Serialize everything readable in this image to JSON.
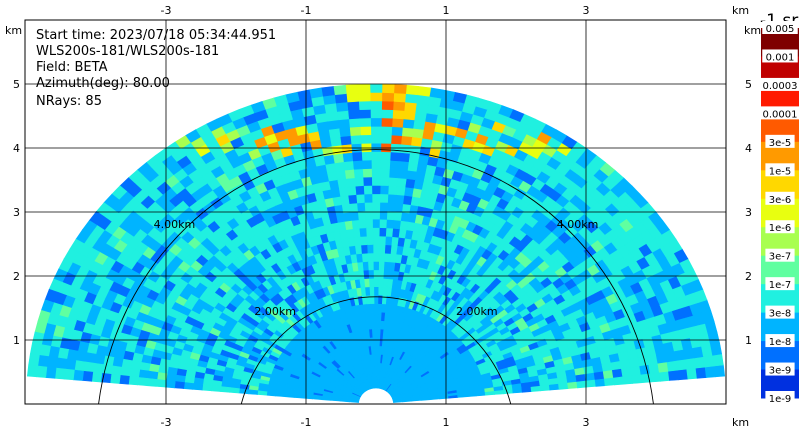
{
  "info": {
    "start_time": "Start time: 2023/07/18 05:34:44.951",
    "instrument": "WLS200s-181/WLS200s-181",
    "field": "Field: BETA",
    "azimuth": "Azimuth(deg): 80.00",
    "nrays": "NRays: 85"
  },
  "colorbar": {
    "title": "-1 sr",
    "labels": [
      "0.005",
      "0.001",
      "0.0003",
      "0.0001",
      "3e-5",
      "1e-5",
      "3e-6",
      "1e-6",
      "3e-7",
      "1e-7",
      "3e-8",
      "1e-8",
      "3e-9",
      "1e-9"
    ],
    "colors": [
      "#7f0000",
      "#c00000",
      "#ff1a00",
      "#ff5a00",
      "#ff9a00",
      "#ffd800",
      "#e8ff10",
      "#a8ff50",
      "#60ffa0",
      "#20f0e0",
      "#00b4ff",
      "#0070ff",
      "#0030e0",
      "#000090"
    ]
  },
  "chart_data": {
    "type": "heatmap",
    "projection": "RHI polar sector (elevation scan)",
    "x_axis": {
      "unit": "km",
      "ticks": [
        -3,
        -1,
        1,
        3
      ],
      "range": [
        -5.0,
        5.0
      ]
    },
    "y_axis": {
      "unit": "km",
      "ticks": [
        1,
        2,
        3,
        4,
        5
      ],
      "range": [
        0,
        5.5
      ]
    },
    "range_rings": [
      {
        "radius_km": 2.0,
        "label": "2.00km"
      },
      {
        "radius_km": 4.0,
        "label": "4.00km"
      }
    ],
    "max_range_km": 5.0,
    "elevation_range_deg": [
      5,
      175
    ],
    "background_level": "1e-7",
    "features": [
      {
        "description": "high backscatter layer near top",
        "level": "1e-5 to 0.0003",
        "height_km": [
          4.0,
          5.2
        ]
      }
    ]
  }
}
